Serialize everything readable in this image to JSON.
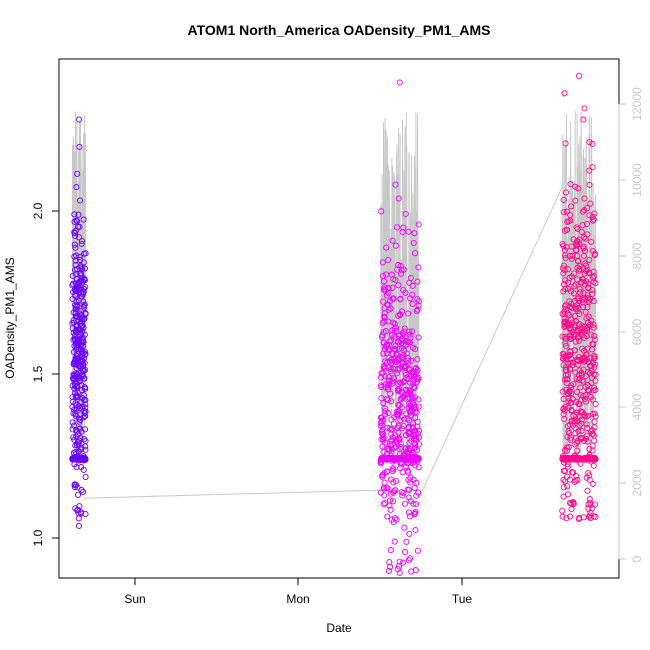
{
  "chart_data": {
    "type": "scatter",
    "title": "ATOM1 North_America OADensity_PM1_AMS",
    "xlabel": "Date",
    "ylabel": "OADensity_PM1_AMS",
    "x_tick_labels": [
      "Sun",
      "Mon",
      "Tue"
    ],
    "y_ticks_left": [
      "1.0",
      "1.5",
      "2.0"
    ],
    "y_ticks_right": [
      "0",
      "2000",
      "4000",
      "6000",
      "8000",
      "10000",
      "12000"
    ],
    "xlim_days": [
      -0.38,
      2.98
    ],
    "ylim_left": [
      0.915,
      2.46
    ],
    "ylim_right": [
      -200,
      12800
    ],
    "grid": false,
    "legend": "none",
    "colors": {
      "seg1": "#6a00ff",
      "seg2": "#ee00ff",
      "seg3": "#ff0a8c",
      "right_axis_line": "#c8c8c8",
      "box": "#000000"
    },
    "series": [
      {
        "day_range": [
          -0.3,
          -0.22
        ],
        "y_min": 1.07,
        "y_max": 2.28,
        "y_center": 1.58,
        "y_spread": 0.22,
        "floor": 1.27,
        "count": 420
      },
      {
        "day_range": [
          1.55,
          1.78
        ],
        "y_min": 0.93,
        "y_max": 2.39,
        "y_center": 1.45,
        "y_spread": 0.22,
        "floor": 1.27,
        "count": 650
      },
      {
        "day_range": [
          2.64,
          2.84
        ],
        "y_min": 1.09,
        "y_max": 2.41,
        "y_center": 1.6,
        "y_spread": 0.26,
        "floor": 1.27,
        "count": 620
      }
    ],
    "right_axis_series": {
      "connectors": [
        {
          "from": [
            -0.23,
            1800
          ],
          "to": [
            1.55,
            2000
          ]
        },
        {
          "from": [
            1.78,
            1800
          ],
          "to": [
            2.64,
            9600
          ]
        }
      ]
    }
  }
}
